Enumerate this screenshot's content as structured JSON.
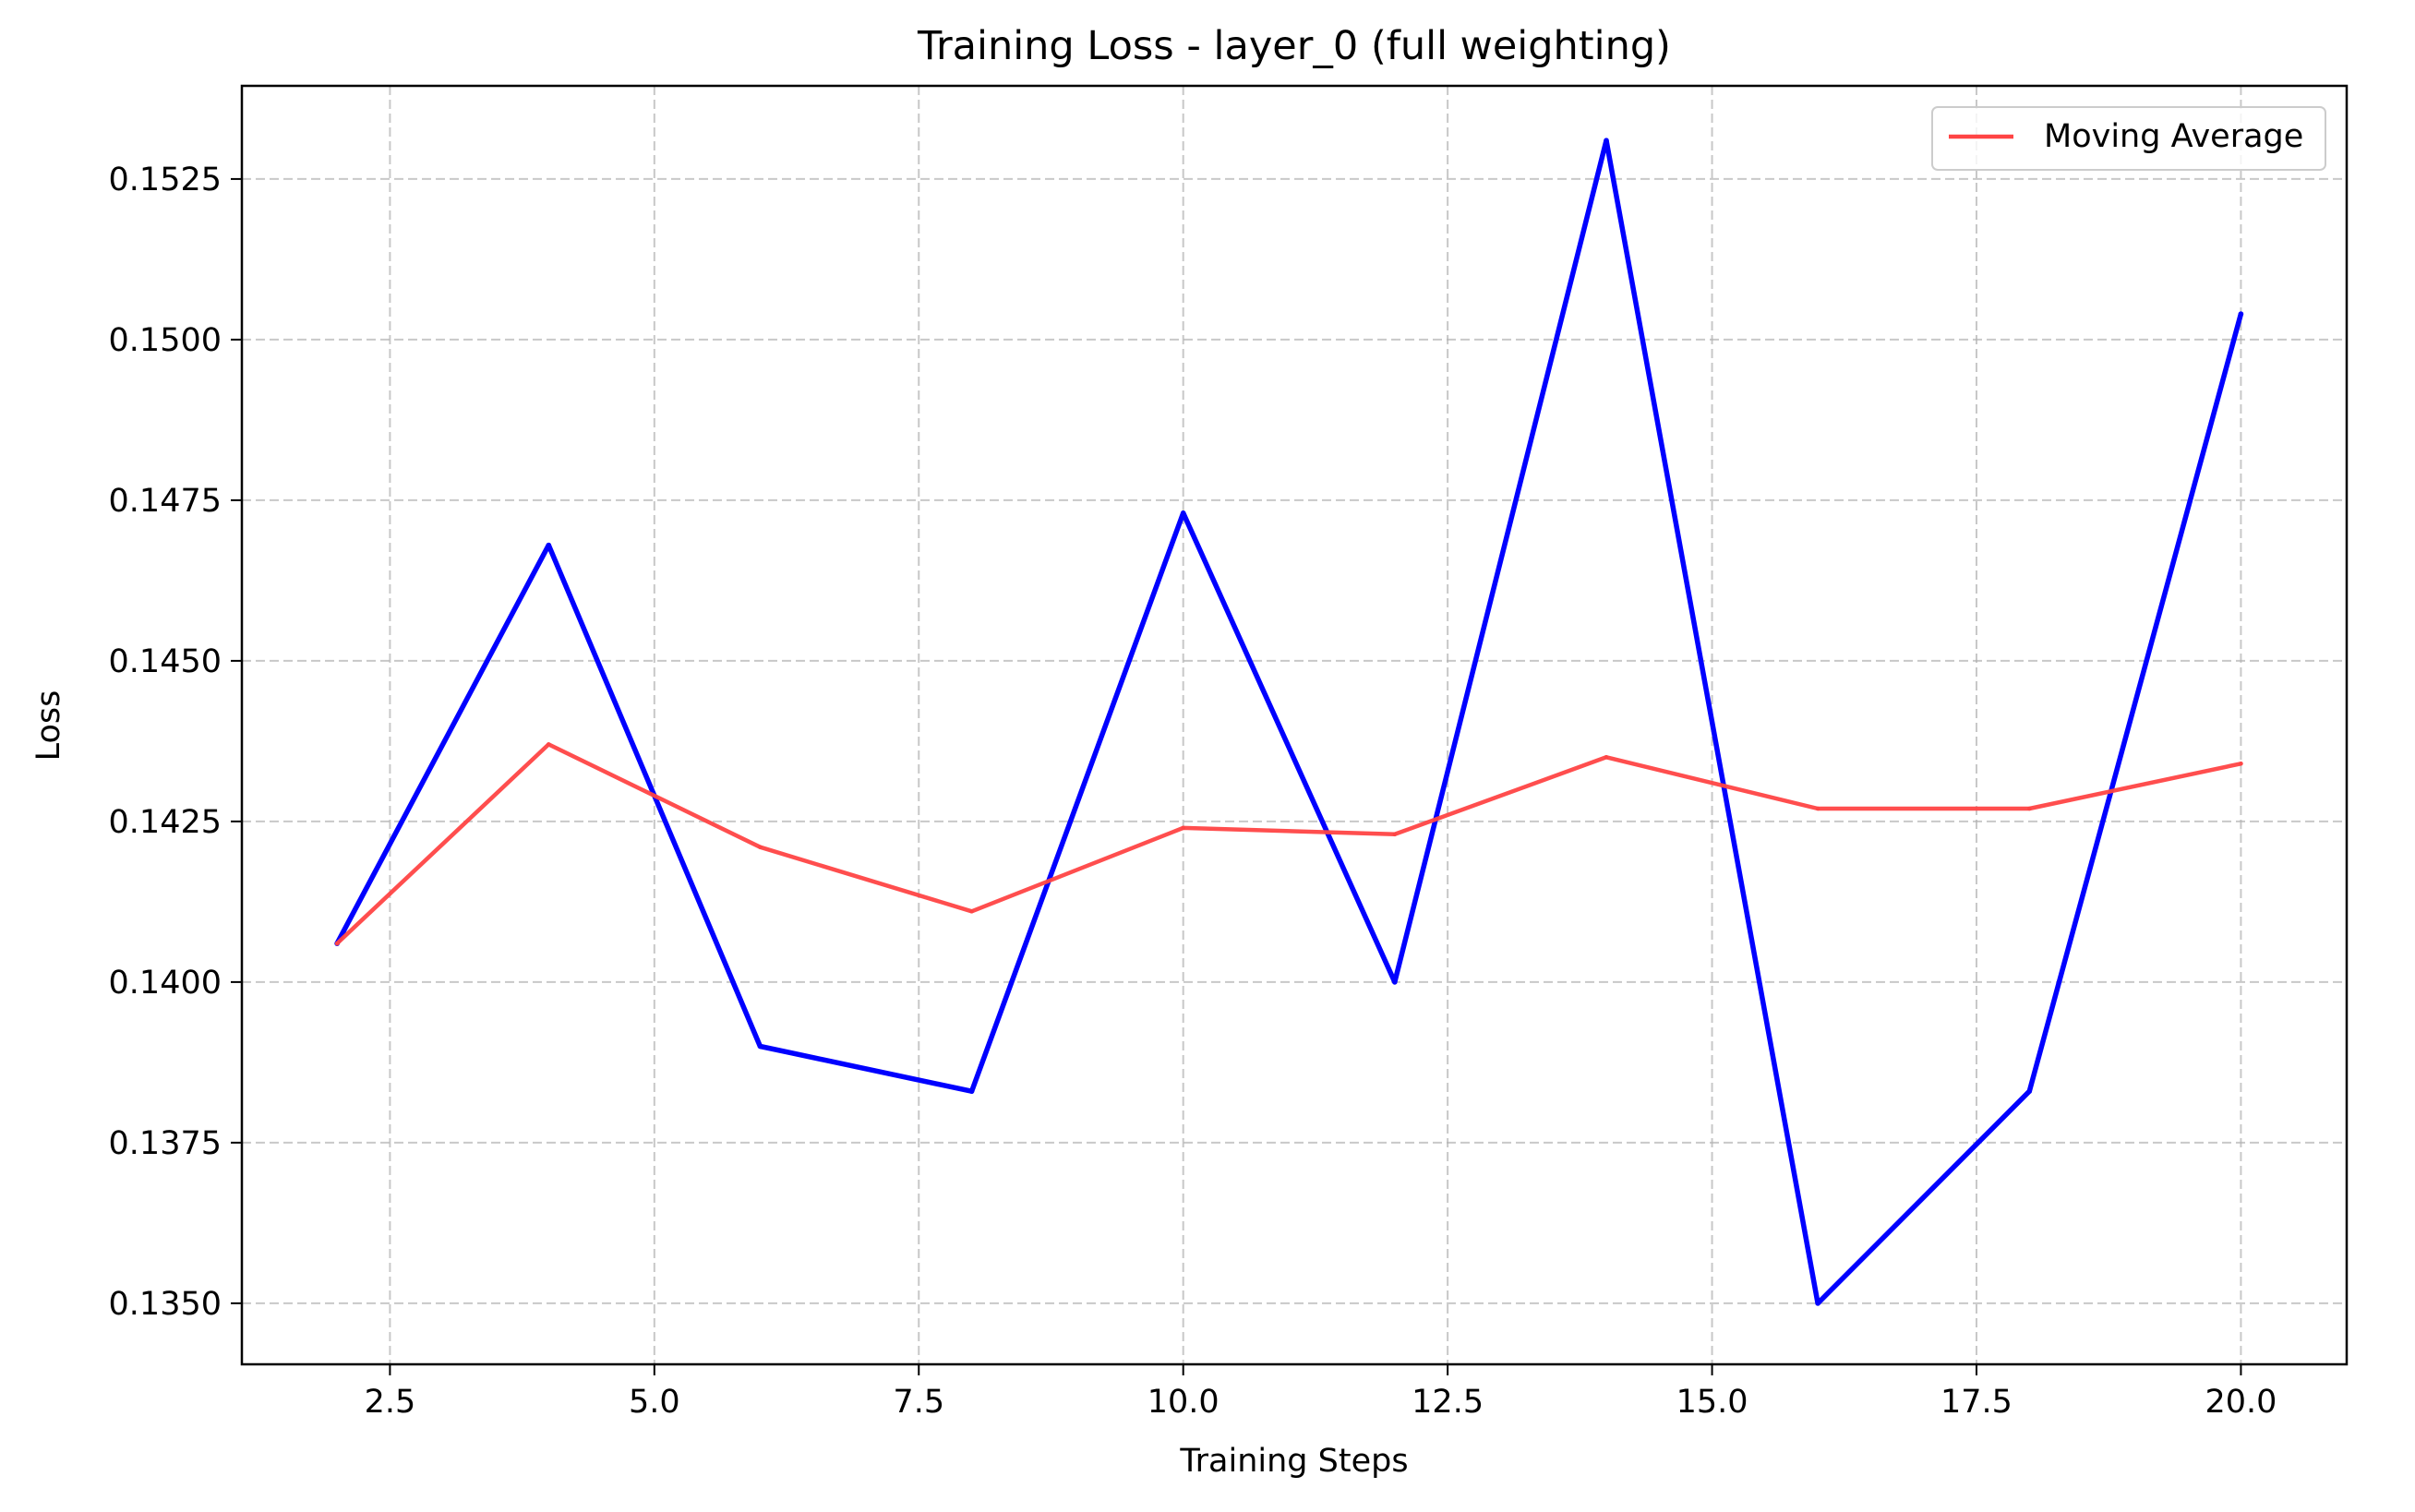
{
  "chart_data": {
    "type": "line",
    "title": "Training Loss - layer_0 (full weighting)",
    "xlabel": "Training Steps",
    "ylabel": "Loss",
    "xlim": [
      1.1,
      21.0
    ],
    "ylim": [
      0.13405,
      0.15395
    ],
    "xticks": [
      2.5,
      5.0,
      7.5,
      10.0,
      12.5,
      15.0,
      17.5,
      20.0
    ],
    "xtick_labels": [
      "2.5",
      "5.0",
      "7.5",
      "10.0",
      "12.5",
      "15.0",
      "17.5",
      "20.0"
    ],
    "yticks": [
      0.135,
      0.1375,
      0.14,
      0.1425,
      0.145,
      0.1475,
      0.15,
      0.1525
    ],
    "ytick_labels": [
      "0.1350",
      "0.1375",
      "0.1400",
      "0.1425",
      "0.1450",
      "0.1475",
      "0.1500",
      "0.1525"
    ],
    "grid": true,
    "legend_position": "top-right",
    "x": [
      2,
      4,
      6,
      8,
      10,
      12,
      14,
      16,
      18,
      20
    ],
    "series": [
      {
        "color": "#0000ff",
        "values": [
          0.1406,
          0.1468,
          0.139,
          0.1383,
          0.1473,
          0.14,
          0.1531,
          0.135,
          0.1383,
          0.1504
        ]
      },
      {
        "name": "Moving Average",
        "color": "#ff4444",
        "values": [
          0.1406,
          0.1437,
          0.1421,
          0.1411,
          0.1424,
          0.1423,
          0.1435,
          0.1427,
          0.1427,
          0.1434
        ]
      }
    ]
  }
}
